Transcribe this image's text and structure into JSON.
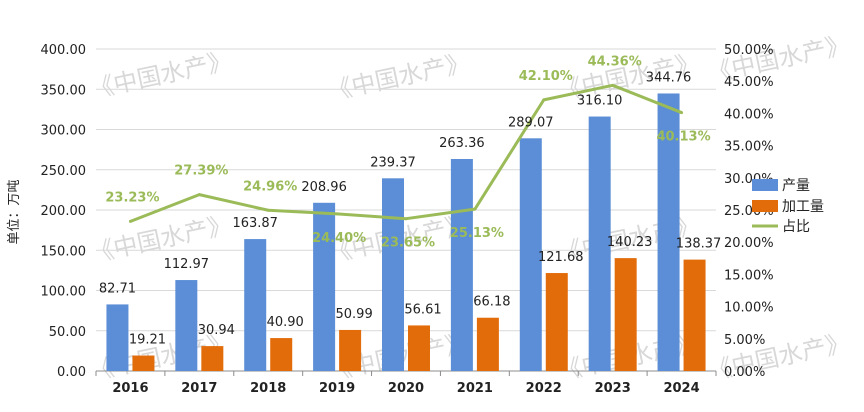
{
  "chart_data": {
    "type": "bar",
    "categories": [
      "2016",
      "2017",
      "2018",
      "2019",
      "2020",
      "2021",
      "2022",
      "2023",
      "2024"
    ],
    "series": [
      {
        "name": "产量",
        "kind": "bar",
        "axis": "left",
        "color": "#5b8ed6",
        "values": [
          82.71,
          112.97,
          163.87,
          208.96,
          239.37,
          263.36,
          289.07,
          316.1,
          344.76
        ],
        "labels": [
          "82.71",
          "112.97",
          "163.87",
          "208.96",
          "239.37",
          "263.36",
          "289.07",
          "316.10",
          "344.76"
        ]
      },
      {
        "name": "加工量",
        "kind": "bar",
        "axis": "left",
        "color": "#e36c0a",
        "values": [
          19.21,
          30.94,
          40.9,
          50.99,
          56.61,
          66.18,
          121.68,
          140.23,
          138.37
        ],
        "labels": [
          "19.21",
          "30.94",
          "40.90",
          "50.99",
          "56.61",
          "66.18",
          "121.68",
          "140.23",
          "138.37"
        ]
      },
      {
        "name": "占比",
        "kind": "line",
        "axis": "right",
        "color": "#9bbb59",
        "values": [
          23.23,
          27.39,
          24.96,
          24.4,
          23.65,
          25.13,
          42.1,
          44.36,
          40.13
        ],
        "labels": [
          "23.23%",
          "27.39%",
          "24.96%",
          "24.40%",
          "23.65%",
          "25.13%",
          "42.10%",
          "44.36%",
          "40.13%"
        ]
      }
    ],
    "ylabel": "单位：万吨",
    "ylim": [
      0,
      400
    ],
    "y2lim": [
      0,
      50
    ],
    "yticks": [
      "0.00",
      "50.00",
      "100.00",
      "150.00",
      "200.00",
      "250.00",
      "300.00",
      "350.00",
      "400.00"
    ],
    "y2ticks": [
      "0.00%",
      "5.00%",
      "10.00%",
      "15.00%",
      "20.00%",
      "25.00%",
      "30.00%",
      "35.00%",
      "40.00%",
      "45.00%",
      "50.00%"
    ],
    "grid": true,
    "legend": "right"
  },
  "watermark": "《中国水产》"
}
